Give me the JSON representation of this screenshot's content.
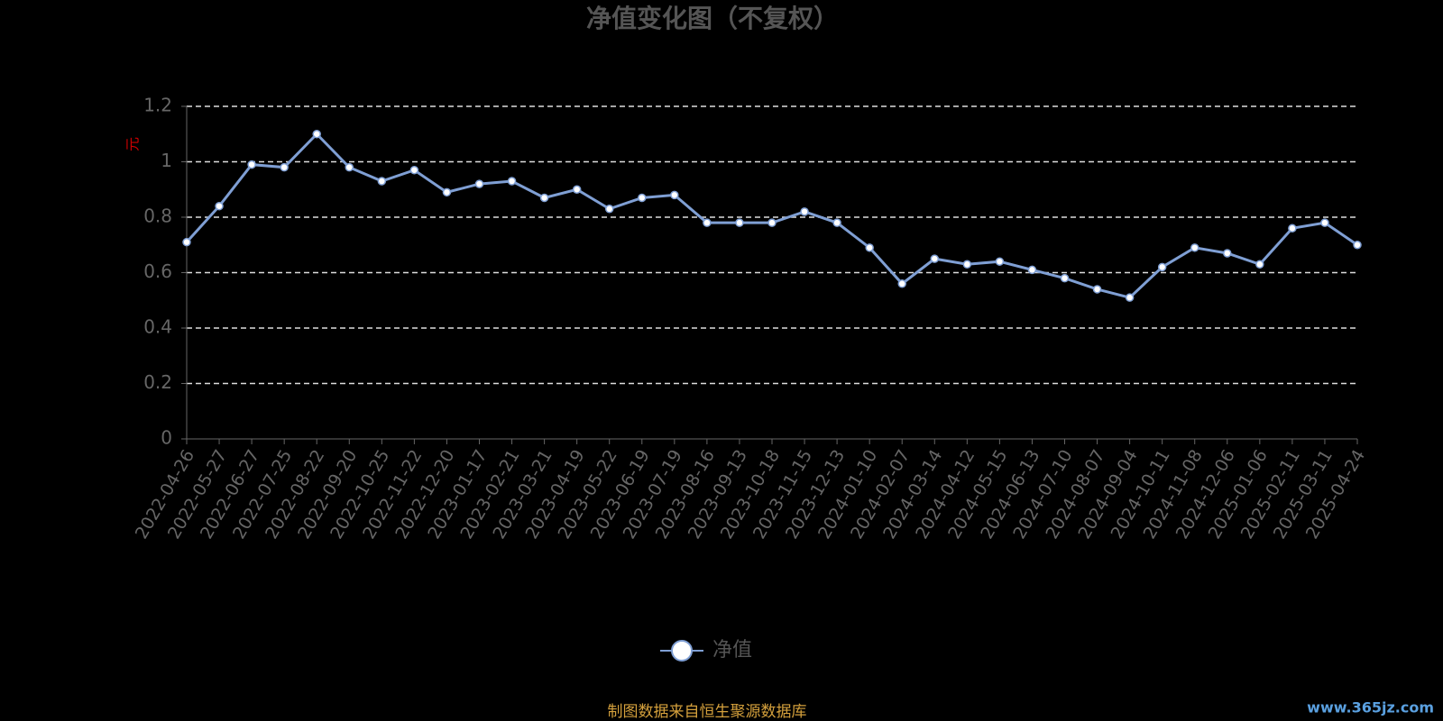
{
  "chart_data": {
    "type": "line",
    "title": "净值变化图（不复权）",
    "y_label": "元",
    "source": "制图数据来自恒生聚源数据库",
    "watermark": "www.365jz.com",
    "categories": [
      "2022-04-26",
      "2022-05-27",
      "2022-06-27",
      "2022-07-25",
      "2022-08-22",
      "2022-09-20",
      "2022-10-25",
      "2022-11-22",
      "2022-12-20",
      "2023-01-17",
      "2023-02-21",
      "2023-03-21",
      "2023-04-19",
      "2023-05-22",
      "2023-06-19",
      "2023-07-19",
      "2023-08-16",
      "2023-09-13",
      "2023-10-18",
      "2023-11-15",
      "2023-12-13",
      "2024-01-10",
      "2024-02-07",
      "2024-03-14",
      "2024-04-12",
      "2024-05-15",
      "2024-06-13",
      "2024-07-10",
      "2024-08-07",
      "2024-09-04",
      "2024-10-11",
      "2024-11-08",
      "2024-12-06",
      "2025-01-06",
      "2025-02-11",
      "2025-03-11",
      "2025-04-24"
    ],
    "series": [
      {
        "name": "净值",
        "color": "#7f9fd4",
        "values": [
          0.71,
          0.84,
          0.99,
          0.98,
          1.1,
          0.98,
          0.93,
          0.97,
          0.89,
          0.92,
          0.93,
          0.87,
          0.9,
          0.83,
          0.87,
          0.88,
          0.78,
          0.78,
          0.78,
          0.82,
          0.78,
          0.69,
          0.56,
          0.65,
          0.63,
          0.64,
          0.61,
          0.58,
          0.54,
          0.51,
          0.62,
          0.69,
          0.67,
          0.63,
          0.76,
          0.78,
          0.7
        ]
      }
    ],
    "ylim": [
      0,
      1.2
    ],
    "yticks": [
      0,
      0.2,
      0.4,
      0.6,
      0.8,
      1,
      1.2
    ],
    "grid": true
  }
}
